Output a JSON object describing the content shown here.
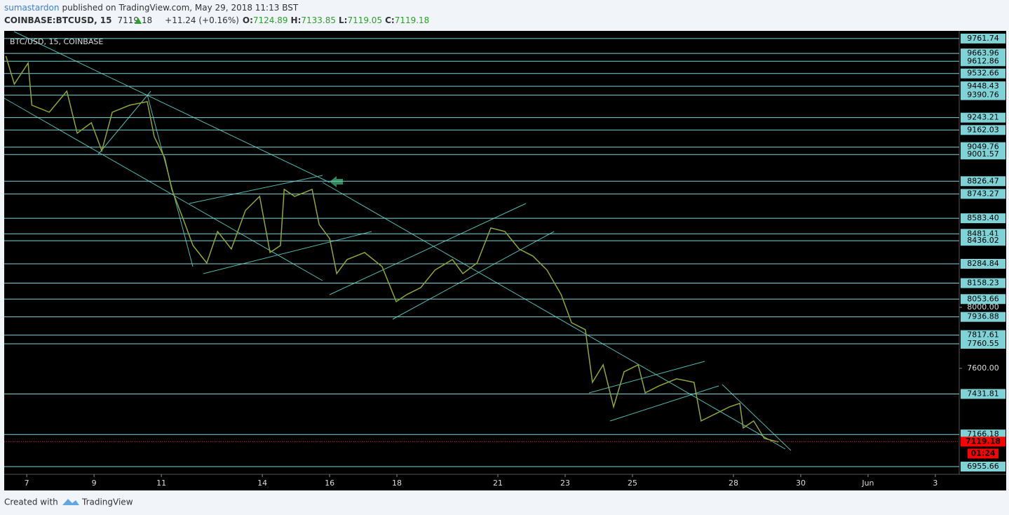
{
  "header": {
    "author": "sumastardon",
    "published": "published on TradingView.com, May 29, 2018 11:13 BST",
    "symbol": "COINBASE:BTCUSD, 15",
    "price": "7119.18",
    "change": "+11.24 (+0.16%)",
    "o_label": "O:",
    "o": "7124.89",
    "h_label": "H:",
    "h": "7133.85",
    "l_label": "L:",
    "l": "7119.05",
    "c_label": "C:",
    "c": "7119.18"
  },
  "footer": {
    "created": "Created with",
    "brand": "TradingView"
  },
  "chart_data": {
    "type": "line",
    "title": "BTC/USD, 15, COINBASE",
    "xlim": [
      6.33,
      34.71
    ],
    "xticks": [
      7,
      9,
      11,
      14,
      16,
      18,
      21,
      23,
      25,
      28,
      30,
      {
        "value": 32,
        "label": "Jun"
      },
      {
        "value": 34,
        "label": "3"
      }
    ],
    "ylim": [
      6905,
      9812
    ],
    "yticks": [
      {
        "value": 8000,
        "label": "8000.00"
      },
      {
        "value": 7600,
        "label": "7600.00"
      }
    ],
    "series": [
      {
        "name": "BTC/USD",
        "color": "#8fa832",
        "x": [
          6.38,
          6.63,
          7.04,
          7.15,
          7.67,
          8.19,
          8.5,
          8.92,
          9.23,
          9.54,
          10.06,
          10.58,
          10.79,
          11.1,
          11.31,
          11.63,
          11.94,
          12.35,
          12.67,
          13.08,
          13.5,
          13.92,
          14.23,
          14.54,
          14.65,
          14.96,
          15.48,
          15.69,
          16.0,
          16.21,
          16.52,
          17.04,
          17.56,
          17.98,
          18.29,
          18.71,
          19.13,
          19.65,
          19.96,
          20.38,
          20.79,
          21.21,
          21.63,
          22.04,
          22.46,
          22.88,
          23.19,
          23.6,
          23.81,
          24.13,
          24.44,
          24.75,
          25.17,
          25.38,
          25.79,
          26.31,
          26.83,
          27.04,
          27.46,
          27.88,
          28.19,
          28.29,
          28.6,
          28.92,
          29.33
        ],
        "values": [
          9647,
          9463,
          9601,
          9325,
          9279,
          9417,
          9141,
          9210,
          9026,
          9279,
          9325,
          9348,
          9118,
          8980,
          8773,
          8589,
          8405,
          8290,
          8497,
          8382,
          8635,
          8727,
          8359,
          8405,
          8773,
          8727,
          8773,
          8543,
          8451,
          8221,
          8313,
          8359,
          8267,
          8037,
          8083,
          8129,
          8244,
          8313,
          8221,
          8290,
          8520,
          8497,
          8382,
          8336,
          8244,
          8083,
          7899,
          7853,
          7508,
          7623,
          7347,
          7577,
          7623,
          7439,
          7485,
          7531,
          7508,
          7255,
          7301,
          7347,
          7370,
          7209,
          7255,
          7140,
          7117
        ]
      }
    ],
    "levels": [
      9761.74,
      9663.96,
      9612.86,
      9532.66,
      9448.43,
      9390.76,
      9243.21,
      9162.03,
      9049.76,
      9001.57,
      8826.47,
      8743.27,
      8583.4,
      8481.41,
      8436.02,
      8284.84,
      8158.23,
      8053.66,
      7936.88,
      7817.61,
      7760.55,
      7431.81,
      7166.18,
      6955.66
    ],
    "level_labels": [
      "9761.74",
      "9663.96",
      "9612.86",
      "9532.66",
      "9448.43",
      "9390.76",
      "9243.21",
      "9162.03",
      "9049.76",
      "9001.57",
      "8826.47",
      "8743.27",
      "8583.40",
      "8481.41",
      "8436.02",
      "8284.84",
      "8158.23",
      "8053.66",
      "7936.88",
      "7817.61",
      "7760.55",
      "7431.81",
      "7166.18",
      "6955.66"
    ],
    "level_color": "#7fd3d6",
    "last": 7119.18,
    "last_label": "7119.18",
    "last_color": "#ff0000",
    "countdown": "01:24"
  }
}
